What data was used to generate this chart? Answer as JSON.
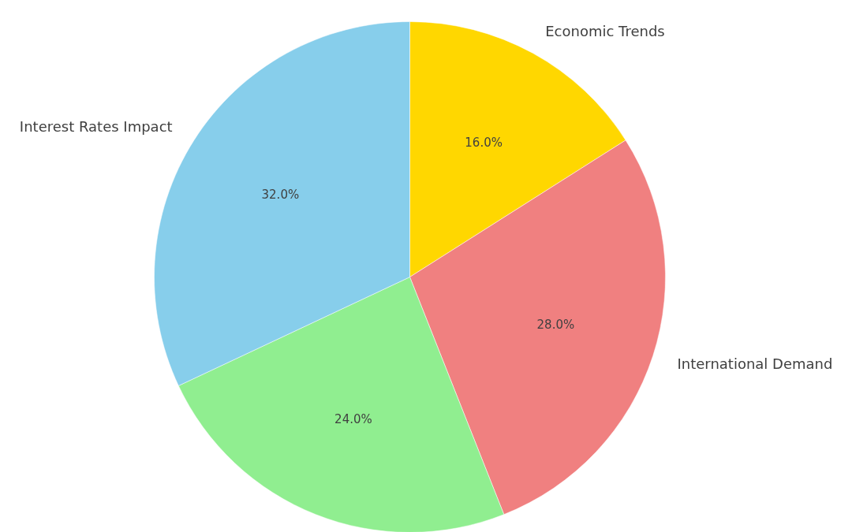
{
  "chart_data": {
    "type": "pie",
    "categories": [
      "Economic Trends",
      "International Demand",
      null,
      "Interest Rates Impact"
    ],
    "values": [
      16,
      28,
      24,
      32
    ],
    "colors": [
      "#ffd700",
      "#f08080",
      "#90ee90",
      "#87ceeb"
    ],
    "value_labels": [
      "16.0%",
      "28.0%",
      "24.0%",
      "32.0%"
    ]
  }
}
